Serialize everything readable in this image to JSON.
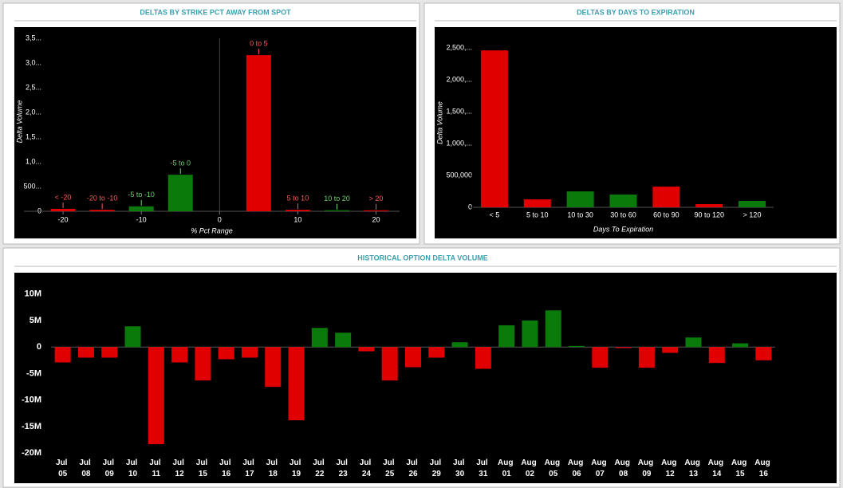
{
  "chart_data": [
    {
      "type": "bar",
      "title": "DELTAS BY STRIKE PCT AWAY FROM SPOT",
      "x": [
        -20,
        -15,
        -10,
        -5,
        5,
        10,
        15,
        20
      ],
      "bar_labels": [
        "< -20",
        "-20 to -10",
        "-5 to -10",
        "-5 to 0",
        "0 to 5",
        "5 to 10",
        "10 to 20",
        "> 20"
      ],
      "values": [
        50000,
        30000,
        100000,
        740000,
        3160000,
        30000,
        20000,
        20000
      ],
      "colors": [
        "#e00000",
        "#e00000",
        "#0a7a0a",
        "#0a7a0a",
        "#e00000",
        "#e00000",
        "#0a7a0a",
        "#e00000"
      ],
      "label_colors": [
        "#ff5a5a",
        "#ff5a5a",
        "#6fd06f",
        "#6fd06f",
        "#ff5a5a",
        "#ff5a5a",
        "#6fd06f",
        "#ff5a5a"
      ],
      "xlabel": "% Pct Range",
      "ylabel": "Delta Volume",
      "xlim": [
        -25,
        23
      ],
      "xticks": [
        -20,
        -10,
        0,
        10,
        20
      ],
      "ylim": [
        0,
        3630000
      ],
      "yticks": [
        0,
        {
          "value": 500000,
          "label": "500..."
        },
        {
          "value": 1000000,
          "label": "1,0..."
        },
        {
          "value": 1500000,
          "label": "1,5..."
        },
        {
          "value": 2000000,
          "label": "2,0..."
        },
        {
          "value": 2500000,
          "label": "2,5..."
        },
        {
          "value": 3000000,
          "label": "3,0..."
        },
        {
          "value": 3500000,
          "label": "3,5..."
        }
      ]
    },
    {
      "type": "bar",
      "title": "DELTAS BY DAYS TO EXPIRATION",
      "categories": [
        "< 5",
        "5 to 10",
        "10 to 30",
        "30 to 60",
        "60 to 90",
        "90 to 120",
        "> 120"
      ],
      "values": [
        2460000,
        125000,
        250000,
        200000,
        325000,
        50000,
        100000
      ],
      "colors": [
        "#e00000",
        "#e00000",
        "#0a7a0a",
        "#0a7a0a",
        "#e00000",
        "#e00000",
        "#0a7a0a"
      ],
      "xlabel": "Days To Expiration",
      "ylabel": "Delta Volume",
      "ylim": [
        0,
        2650000
      ],
      "yticks": [
        0,
        {
          "value": 500000,
          "label": "500,000"
        },
        {
          "value": 1000000,
          "label": "1,000,..."
        },
        {
          "value": 1500000,
          "label": "1,500,..."
        },
        {
          "value": 2000000,
          "label": "2,000,..."
        },
        {
          "value": 2500000,
          "label": "2,500,..."
        }
      ]
    },
    {
      "type": "bar",
      "title": "HISTORICAL OPTION DELTA VOLUME",
      "categories": [
        "Jul 05",
        "Jul 08",
        "Jul 09",
        "Jul 10",
        "Jul 11",
        "Jul 12",
        "Jul 15",
        "Jul 16",
        "Jul 17",
        "Jul 18",
        "Jul 19",
        "Jul 22",
        "Jul 23",
        "Jul 24",
        "Jul 25",
        "Jul 26",
        "Jul 29",
        "Jul 30",
        "Jul 31",
        "Aug 01",
        "Aug 02",
        "Aug 05",
        "Aug 06",
        "Aug 07",
        "Aug 08",
        "Aug 09",
        "Aug 12",
        "Aug 13",
        "Aug 14",
        "Aug 15",
        "Aug 16"
      ],
      "values": [
        -2.9,
        -2.0,
        -2.0,
        3.9,
        -18.3,
        -2.9,
        -6.3,
        -2.3,
        -2.0,
        -7.5,
        -13.8,
        3.6,
        2.7,
        -0.8,
        -6.3,
        -3.8,
        -2.0,
        0.9,
        -4.1,
        4.1,
        5.0,
        6.9,
        0.2,
        -3.9,
        -0.2,
        -3.9,
        -1.1,
        1.8,
        -3.0,
        0.7,
        -2.5
      ],
      "positive_color": "#0a7a0a",
      "negative_color": "#e00000",
      "ylim": [
        -21,
        12.8
      ],
      "yticks": [
        {
          "value": -20,
          "label": "-20M"
        },
        {
          "value": -15,
          "label": "-15M"
        },
        {
          "value": -10,
          "label": "-10M"
        },
        {
          "value": -5,
          "label": "-5M"
        },
        0,
        {
          "value": 5,
          "label": "5M"
        },
        {
          "value": 10,
          "label": "10M"
        }
      ]
    }
  ]
}
